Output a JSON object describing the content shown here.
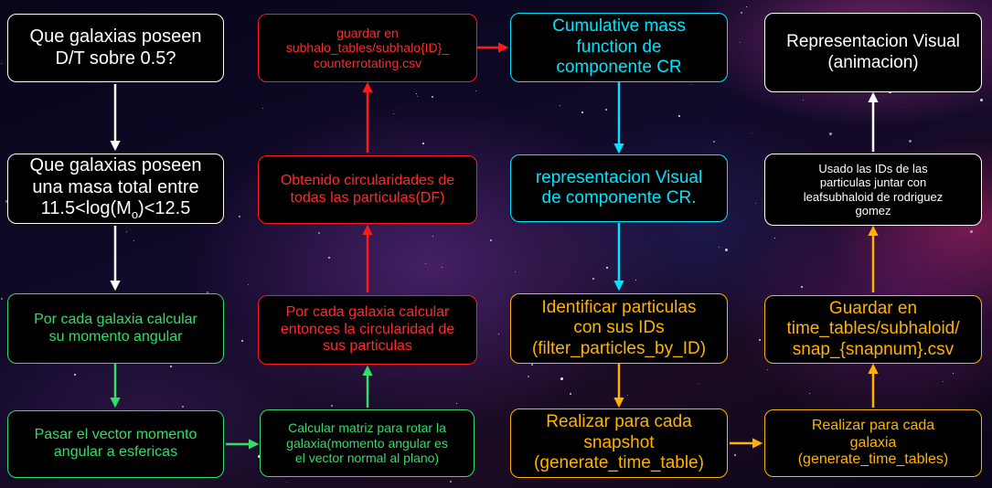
{
  "colors": {
    "white": "#ffffff",
    "red": "#ff1a1a",
    "cyan": "#00e5ff",
    "green": "#33dd66",
    "orange": "#ffb300"
  },
  "nodes": {
    "dt": "Que galaxias poseen\nD/T sobre 0.5?",
    "mass_a": "Que galaxias poseen\nuna masa total entre\n11.5<log(M",
    "mass_sub": "o",
    "mass_b": ")<12.5",
    "angular": "Por cada galaxia calcular\nsu momento angular",
    "spherical": "Pasar el vector momento\nangular a esfericas",
    "rotation": "Calcular matriz para rotar la\ngalaxia(momento angular es\nel vector normal al plano)",
    "circ_calc": "Por cada galaxia calcular\nentonces la circularidad de\nsus particulas",
    "circ_done": "Obtenido circularidades de\ntodas las particulas(DF)",
    "save_cr": "guardar en\nsubhalo_tables/subhalo{ID}_\ncounterrotating.csv",
    "cmf": "Cumulative mass\nfunction de\ncomponente CR",
    "vis_cr": "representacion Visual\nde componente CR.",
    "identify": "Identificar particulas\ncon sus IDs\n(filter_particles_by_ID)",
    "snapshot": "Realizar para cada\nsnapshot\n(generate_time_table)",
    "galaxy": "Realizar para cada\ngalaxia\n(generate_time_tables)",
    "save_time": "Guardar en\ntime_tables/subhaloid/\nsnap_{snapnum}.csv",
    "ids": "Usado las IDs de las\nparticulas juntar con\nleafsubhaloid de rodriguez\ngomez",
    "anim": "Representacion Visual\n(animacion)"
  }
}
